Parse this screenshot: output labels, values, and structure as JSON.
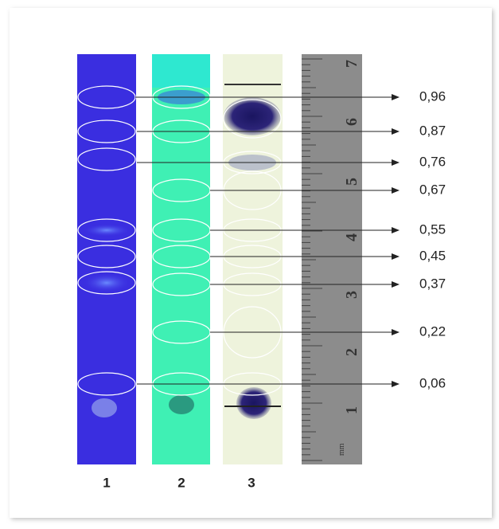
{
  "lanes": [
    {
      "label": "1"
    },
    {
      "label": "2"
    },
    {
      "label": "3"
    }
  ],
  "rf_values": [
    {
      "label": "0,96"
    },
    {
      "label": "0,87"
    },
    {
      "label": "0,76"
    },
    {
      "label": "0,67"
    },
    {
      "label": "0,55"
    },
    {
      "label": "0,45"
    },
    {
      "label": "0,37"
    },
    {
      "label": "0,22"
    },
    {
      "label": "0,06"
    }
  ],
  "ruler": {
    "numbers": [
      "1",
      "2",
      "3",
      "4",
      "5",
      "6",
      "7"
    ],
    "unit": "mm"
  }
}
